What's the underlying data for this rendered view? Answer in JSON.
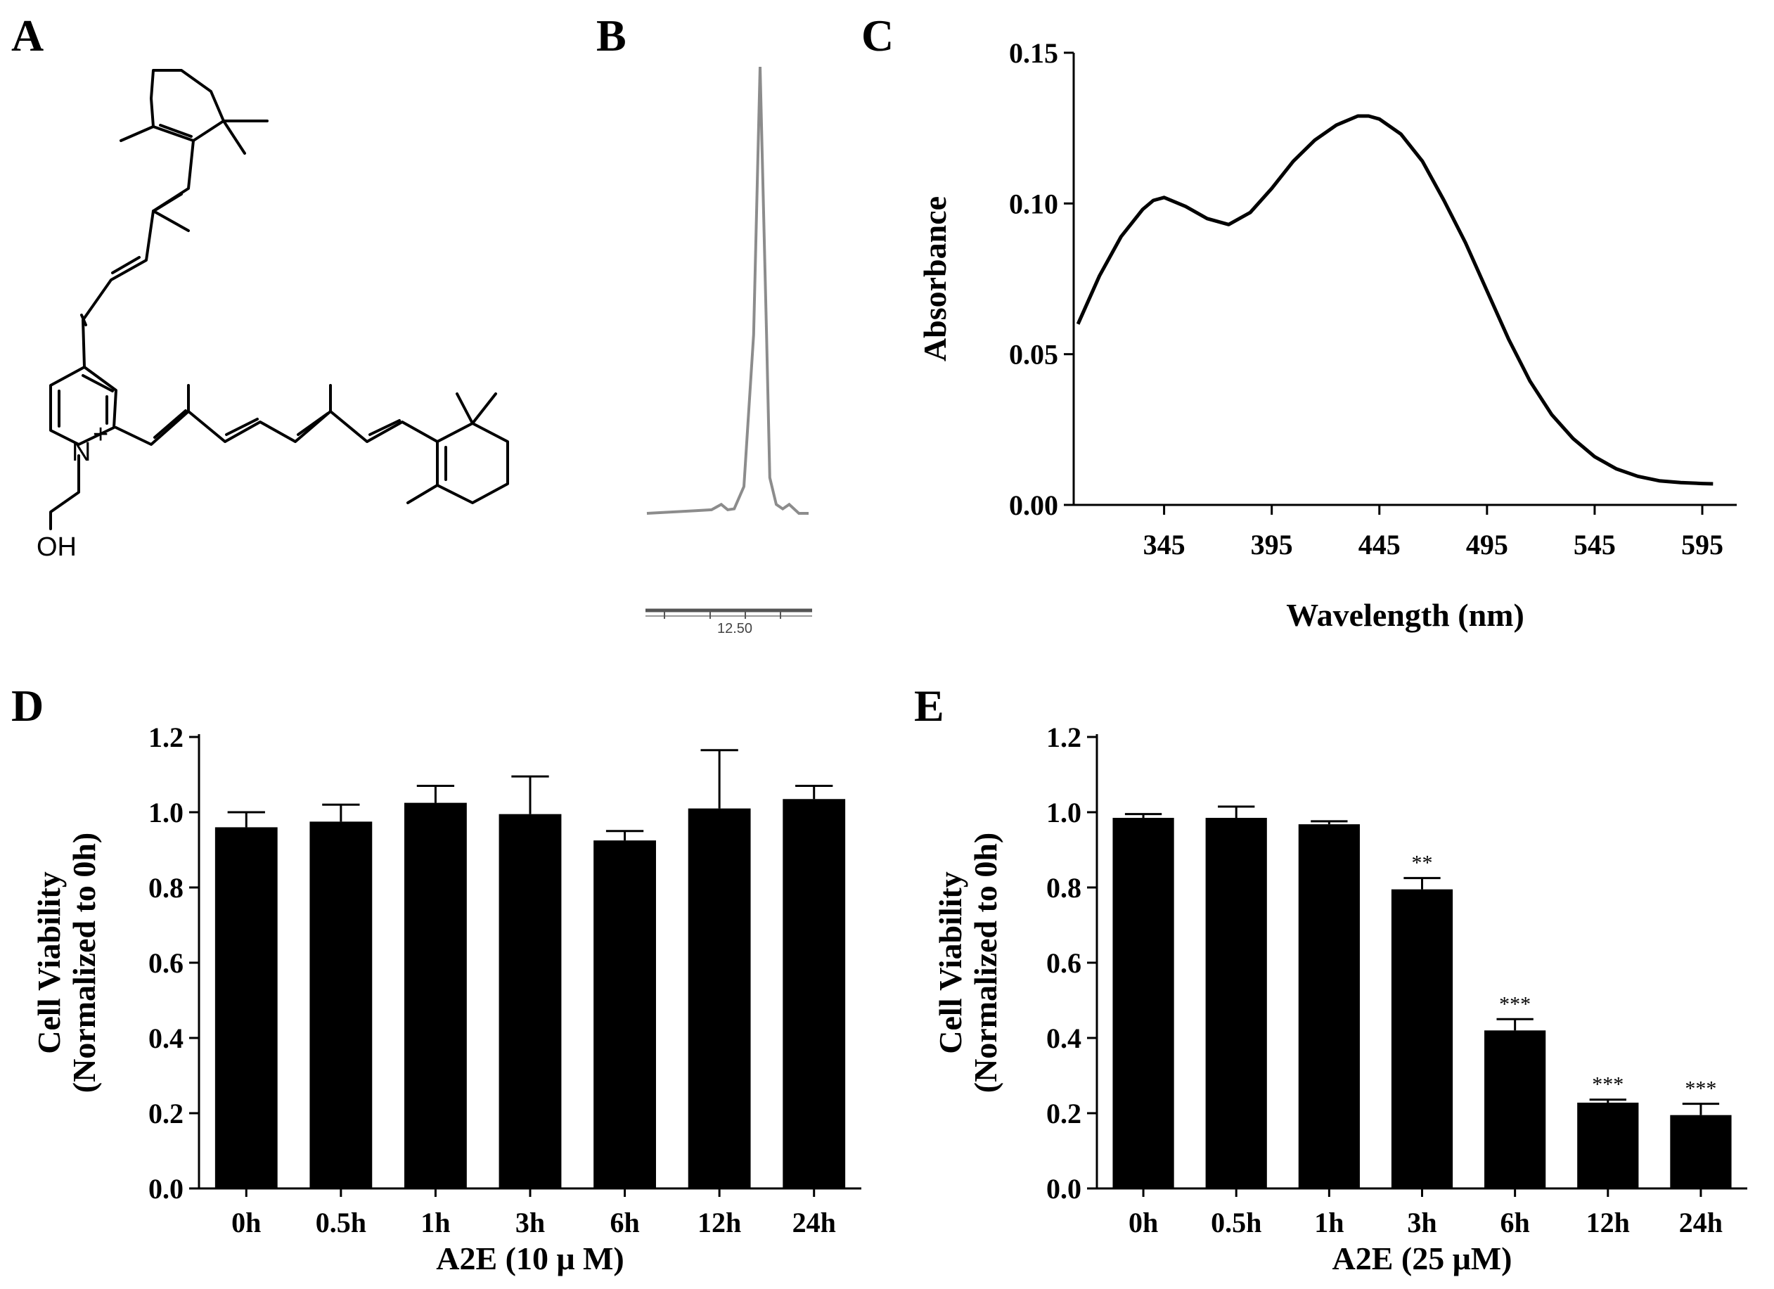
{
  "panels": {
    "a": {
      "letter": "A",
      "atoms": {
        "n": "N",
        "plus": "+",
        "oh": "OH"
      }
    },
    "b": {
      "letter": "B",
      "retention_label": "12.50"
    },
    "c": {
      "letter": "C"
    },
    "d": {
      "letter": "D"
    },
    "e": {
      "letter": "E"
    }
  },
  "chart_data": [
    {
      "id": "hplc",
      "type": "line",
      "title": "",
      "xlabel": "",
      "ylabel": "",
      "peak_retention_label": "12.50",
      "x": [
        0,
        10,
        20,
        30,
        40,
        46,
        50,
        54,
        60,
        66,
        70,
        74,
        76,
        80,
        84,
        88,
        94,
        100
      ],
      "values": [
        0,
        0.002,
        0.004,
        0.006,
        0.008,
        0.02,
        0.008,
        0.01,
        0.06,
        0.4,
        1.0,
        0.4,
        0.08,
        0.02,
        0.01,
        0.02,
        0.0,
        0.0
      ],
      "xlim": [
        0,
        100
      ],
      "ylim": [
        0,
        1
      ]
    },
    {
      "id": "absorbance",
      "type": "line",
      "title": "",
      "xlabel": "Wavelength (nm)",
      "ylabel": "Absorbance",
      "xticks": [
        345,
        395,
        445,
        495,
        545,
        595
      ],
      "yticks": [
        0.0,
        0.05,
        0.1,
        0.15
      ],
      "ytick_labels": [
        "0.00",
        "0.05",
        "0.10",
        "0.15"
      ],
      "xlim": [
        303,
        611
      ],
      "ylim": [
        0,
        0.15
      ],
      "x": [
        305,
        315,
        325,
        335,
        340,
        345,
        355,
        365,
        375,
        385,
        395,
        405,
        415,
        425,
        435,
        440,
        445,
        455,
        465,
        475,
        485,
        495,
        505,
        515,
        525,
        535,
        545,
        555,
        565,
        575,
        585,
        595,
        600
      ],
      "values": [
        0.06,
        0.076,
        0.089,
        0.098,
        0.101,
        0.102,
        0.099,
        0.095,
        0.093,
        0.097,
        0.105,
        0.114,
        0.121,
        0.126,
        0.129,
        0.129,
        0.128,
        0.123,
        0.114,
        0.101,
        0.087,
        0.071,
        0.055,
        0.041,
        0.03,
        0.022,
        0.016,
        0.012,
        0.0095,
        0.008,
        0.0074,
        0.0071,
        0.007
      ]
    },
    {
      "id": "viability-10",
      "type": "bar",
      "title": "",
      "xlabel": "A2E (10 μ M)",
      "ylabel_lines": [
        "Cell Viability",
        "(Normalized to 0h)"
      ],
      "categories": [
        "0h",
        "0.5h",
        "1h",
        "3h",
        "6h",
        "12h",
        "24h"
      ],
      "values": [
        0.96,
        0.975,
        1.025,
        0.995,
        0.925,
        1.01,
        1.035
      ],
      "errors": [
        0.04,
        0.045,
        0.045,
        0.1,
        0.025,
        0.155,
        0.035
      ],
      "significance": [
        "",
        "",
        "",
        "",
        "",
        "",
        ""
      ],
      "yticks": [
        0.0,
        0.2,
        0.4,
        0.6,
        0.8,
        1.0,
        1.2
      ],
      "ytick_labels": [
        "0.0",
        "0.2",
        "0.4",
        "0.6",
        "0.8",
        "1.0",
        "1.2"
      ],
      "ylim": [
        0,
        1.2
      ]
    },
    {
      "id": "viability-25",
      "type": "bar",
      "title": "",
      "xlabel": "A2E (25 μM)",
      "ylabel_lines": [
        "Cell Viability",
        "(Normalized to 0h)"
      ],
      "categories": [
        "0h",
        "0.5h",
        "1h",
        "3h",
        "6h",
        "12h",
        "24h"
      ],
      "values": [
        0.985,
        0.985,
        0.968,
        0.795,
        0.42,
        0.228,
        0.195
      ],
      "errors": [
        0.01,
        0.03,
        0.008,
        0.03,
        0.03,
        0.008,
        0.03
      ],
      "significance": [
        "",
        "",
        "",
        "**",
        "***",
        "***",
        "***"
      ],
      "yticks": [
        0.0,
        0.2,
        0.4,
        0.6,
        0.8,
        1.0,
        1.2
      ],
      "ytick_labels": [
        "0.0",
        "0.2",
        "0.4",
        "0.6",
        "0.8",
        "1.0",
        "1.2"
      ],
      "ylim": [
        0,
        1.2
      ]
    }
  ]
}
